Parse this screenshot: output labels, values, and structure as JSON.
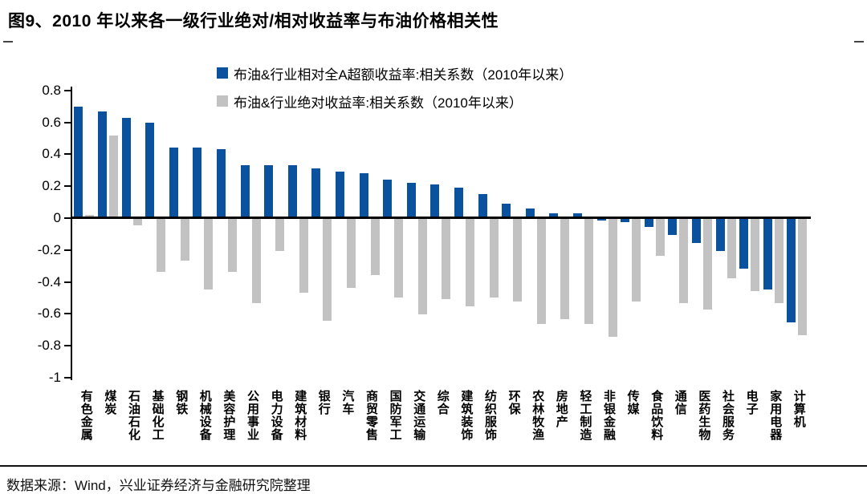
{
  "title": "图9、2010 年以来各一级行业绝对/相对收益率与布油价格相关性",
  "source": "数据来源：Wind，兴业证券经济与金融研究院整理",
  "colors": {
    "blue": "#0B529E",
    "gray": "#C2C2C2",
    "axis": "#000000"
  },
  "chart_data": {
    "type": "bar",
    "title": "图9、2010 年以来各一级行业绝对/相对收益率与布油价格相关性",
    "categories": [
      "有色金属",
      "煤炭",
      "石油石化",
      "基础化工",
      "钢铁",
      "机械设备",
      "美容护理",
      "公用事业",
      "电力设备",
      "建筑材料",
      "银行",
      "汽车",
      "商贸零售",
      "国防军工",
      "交通运输",
      "综合",
      "建筑装饰",
      "纺织服饰",
      "环保",
      "农林牧渔",
      "房地产",
      "轻工制造",
      "非银金融",
      "传媒",
      "食品饮料",
      "通信",
      "医药生物",
      "社会服务",
      "电子",
      "家用电器",
      "计算机"
    ],
    "series": [
      {
        "name": "布油&行业相对全A超额收益率:相关系数（2010年以来）",
        "color": "#0B529E",
        "values": [
          0.7,
          0.67,
          0.63,
          0.6,
          0.44,
          0.44,
          0.43,
          0.33,
          0.33,
          0.33,
          0.31,
          0.29,
          0.28,
          0.24,
          0.22,
          0.21,
          0.19,
          0.15,
          0.09,
          0.06,
          0.03,
          0.03,
          -0.01,
          -0.02,
          -0.05,
          -0.1,
          -0.15,
          -0.2,
          -0.31,
          -0.44,
          -0.65
        ]
      },
      {
        "name": "布油&行业绝对收益率:相关系数（2010年以来）",
        "color": "#C2C2C2",
        "values": [
          0.02,
          0.52,
          -0.04,
          -0.33,
          -0.26,
          -0.44,
          -0.33,
          -0.53,
          -0.2,
          -0.46,
          -0.64,
          -0.43,
          -0.35,
          -0.49,
          -0.6,
          -0.5,
          -0.55,
          -0.49,
          -0.52,
          -0.66,
          -0.63,
          -0.66,
          -0.74,
          -0.52,
          -0.23,
          -0.53,
          -0.57,
          -0.37,
          -0.45,
          -0.53,
          -0.73
        ]
      }
    ],
    "xlabel": "",
    "ylabel": "",
    "ylim": [
      -1,
      0.8
    ],
    "y_tick_labels": [
      "0.8",
      "0.6",
      "0.4",
      "0.2",
      "0",
      "-0.2",
      "-0.4",
      "-0.6",
      "-0.8",
      "-1"
    ],
    "grid": false,
    "legend_position": "top-center"
  }
}
